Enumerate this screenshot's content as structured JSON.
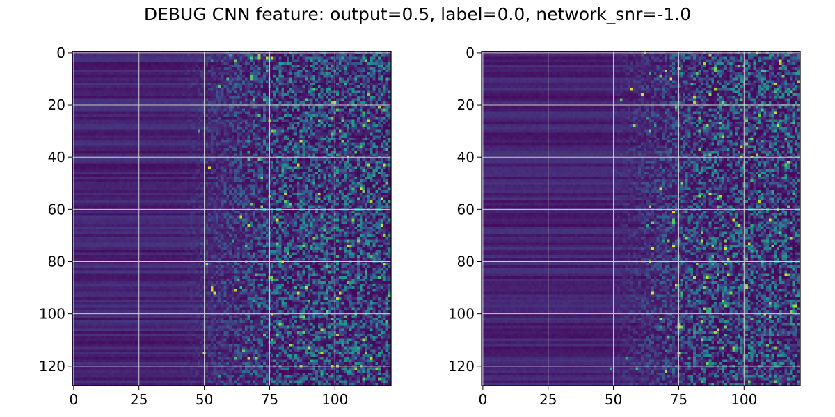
{
  "figure": {
    "title": "DEBUG CNN feature: output=0.5, label=0.0, network_snr=-1.0"
  },
  "chart_data": [
    {
      "type": "heatmap",
      "colormap": "viridis",
      "rows": 128,
      "cols": 122,
      "xlim": [
        -0.5,
        121.5
      ],
      "ylim": [
        127.5,
        -0.5
      ],
      "xticks": [
        0,
        25,
        50,
        75,
        100
      ],
      "yticks": [
        0,
        20,
        40,
        60,
        80,
        100,
        120
      ],
      "xtick_labels": [
        "0",
        "25",
        "50",
        "75",
        "100"
      ],
      "ytick_labels": [
        "0",
        "20",
        "40",
        "60",
        "80",
        "100",
        "120"
      ],
      "grid": true,
      "grid_color": "#d0d0d0",
      "value_range": [
        0,
        1
      ],
      "description_of_values": "low (~0.05-0.15) dark purple horizontal banding for columns 0-50, increasing noisy values for columns 60-121 with sparse bright speckles"
    },
    {
      "type": "heatmap",
      "colormap": "viridis",
      "rows": 128,
      "cols": 122,
      "xlim": [
        -0.5,
        121.5
      ],
      "ylim": [
        127.5,
        -0.5
      ],
      "xticks": [
        0,
        25,
        50,
        75,
        100
      ],
      "yticks": [
        0,
        20,
        40,
        60,
        80,
        100,
        120
      ],
      "xtick_labels": [
        "0",
        "25",
        "50",
        "75",
        "100"
      ],
      "ytick_labels": [
        "0",
        "20",
        "40",
        "60",
        "80",
        "100",
        "120"
      ],
      "grid": true,
      "grid_color": "#d0d0d0",
      "value_range": [
        0,
        1
      ],
      "description_of_values": "dark purple horizontal banding for columns 0-60, noisy speckled values for columns 65-121, slightly fewer bright speckles than left panel"
    }
  ]
}
